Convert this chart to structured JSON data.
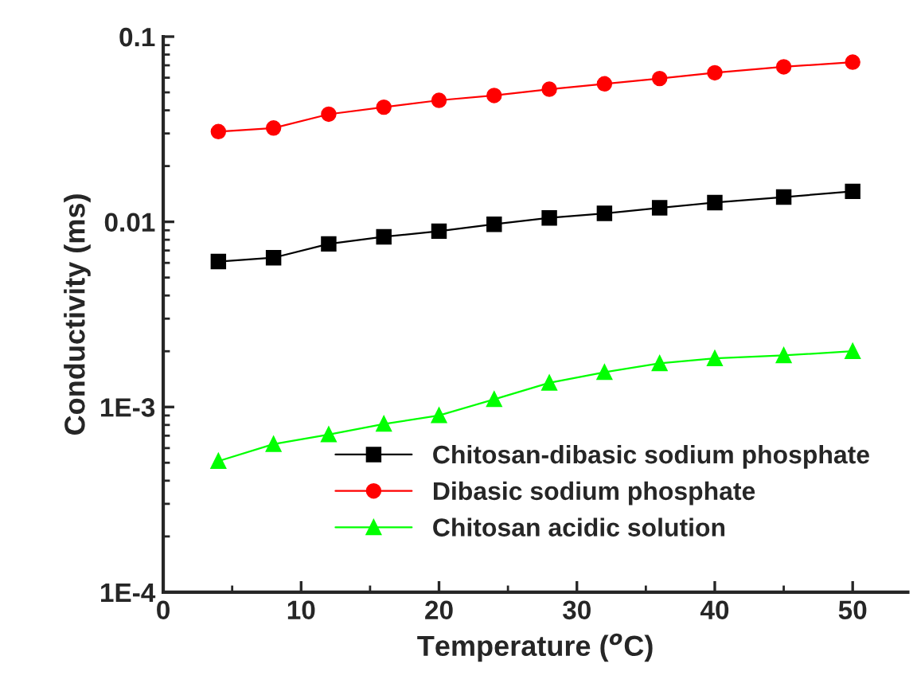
{
  "chart_data": {
    "type": "line",
    "xlabel": "Temperature ($^{o}$C)",
    "ylabel": "Conductivity (ms)",
    "x": [
      4,
      8,
      12,
      16,
      20,
      24,
      28,
      32,
      36,
      40,
      45,
      50
    ],
    "series": [
      {
        "name": "Chitosan-dibasic sodium phosphate",
        "color": "#000000",
        "marker": "square",
        "values": [
          0.0061,
          0.0064,
          0.0076,
          0.0083,
          0.0089,
          0.0097,
          0.0105,
          0.0111,
          0.0119,
          0.0127,
          0.0136,
          0.0146
        ]
      },
      {
        "name": "Dibasic sodium phosphate",
        "color": "#ff0000",
        "marker": "circle",
        "values": [
          0.0307,
          0.0321,
          0.0381,
          0.0416,
          0.0453,
          0.0481,
          0.052,
          0.0556,
          0.0594,
          0.0638,
          0.0687,
          0.0728
        ]
      },
      {
        "name": "Chitosan acidic solution",
        "color": "#00ff00",
        "marker": "triangle",
        "values": [
          0.00051,
          0.00063,
          0.00071,
          0.00081,
          0.0009,
          0.0011,
          0.00135,
          0.00154,
          0.00172,
          0.00183,
          0.0019,
          0.002
        ]
      }
    ],
    "log": "y",
    "xlim": [
      0,
      54
    ],
    "ylim": [
      0.0001,
      0.1
    ],
    "xticks": [
      0,
      10,
      20,
      30,
      40,
      50
    ],
    "yticks": [
      {
        "value": 0.0001,
        "label": "1E-4"
      },
      {
        "value": 0.001,
        "label": "1E-3"
      },
      {
        "value": 0.01,
        "label": "0.01"
      },
      {
        "value": 0.1,
        "label": "0.1"
      }
    ],
    "grid": false,
    "legend": "bottom right",
    "line_style": "solid"
  }
}
